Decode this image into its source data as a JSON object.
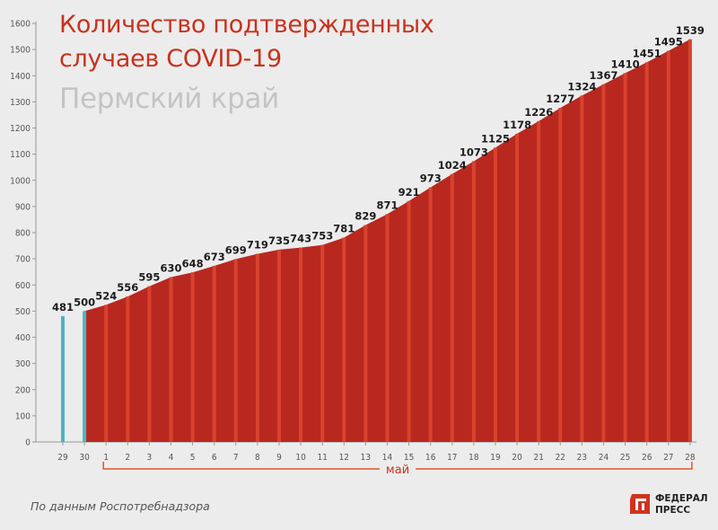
{
  "title_line1": "Количество подтвержденных",
  "title_line2": "случаев COVID-19",
  "subtitle": "Пермский край",
  "source": "По данным Роспотребнадзора",
  "logo": {
    "line1": "ФЕДЕРАЛ",
    "line2": "ПРЕСС"
  },
  "colors": {
    "bar_may": "#b8281f",
    "bar_april": "#4ab5c4",
    "title": "#c8321e",
    "subtitle": "#c4c4c4"
  },
  "chart_data": {
    "type": "bar",
    "title": "Количество подтвержденных случаев COVID-19",
    "subtitle": "Пермский край",
    "categories": [
      "29",
      "30",
      "1",
      "2",
      "3",
      "4",
      "5",
      "6",
      "7",
      "8",
      "9",
      "10",
      "11",
      "12",
      "13",
      "14",
      "15",
      "16",
      "17",
      "18",
      "19",
      "20",
      "21",
      "22",
      "23",
      "24",
      "25",
      "26",
      "27",
      "28"
    ],
    "values": [
      481,
      500,
      524,
      556,
      595,
      630,
      648,
      673,
      699,
      719,
      735,
      743,
      753,
      781,
      829,
      871,
      921,
      973,
      1024,
      1073,
      1125,
      1178,
      1226,
      1277,
      1324,
      1367,
      1410,
      1451,
      1495,
      1539
    ],
    "month_label": "май",
    "yticks": [
      0,
      100,
      200,
      300,
      400,
      500,
      600,
      700,
      800,
      900,
      1000,
      1100,
      1200,
      1300,
      1400,
      1500,
      1600
    ],
    "ylim": [
      0,
      1600
    ],
    "xlabel": "",
    "ylabel": ""
  }
}
